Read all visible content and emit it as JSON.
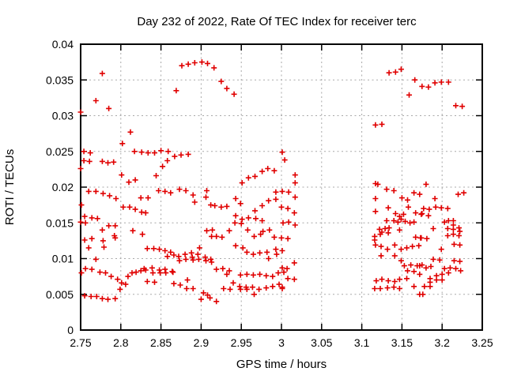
{
  "title": "Day 232 of 2022, Rate Of TEC Index for receiver terc",
  "chart_data": {
    "type": "scatter",
    "title": "Day 232 of 2022, Rate Of TEC Index for receiver terc",
    "xlabel": "GPS time / hours",
    "ylabel": "ROTI / TECUs",
    "xlim": [
      2.75,
      3.25
    ],
    "ylim": [
      0,
      0.04
    ],
    "grid": true,
    "legend": "none",
    "marker": "plus",
    "colors": {
      "marker": "#e00000",
      "grid": "#a8a8a8",
      "axis": "#000000",
      "background": "#ffffff",
      "text": "#000000"
    },
    "x_tick_values": [
      2.75,
      2.8,
      2.85,
      2.9,
      2.95,
      3,
      3.05,
      3.1,
      3.15,
      3.2,
      3.25
    ],
    "x_tick_labels": [
      "2.75",
      "2.8",
      "2.85",
      "2.9",
      "2.95",
      "3",
      "3.05",
      "3.1",
      "3.15",
      "3.2",
      "3.25"
    ],
    "y_tick_values": [
      0,
      0.005,
      0.01,
      0.015,
      0.02,
      0.025,
      0.03,
      0.035,
      0.04
    ],
    "y_tick_labels": [
      "0",
      "0.005",
      "0.01",
      "0.015",
      "0.02",
      "0.025",
      "0.03",
      "0.035",
      "0.04"
    ],
    "points": [
      [
        2.876,
        0.037
      ],
      [
        2.884,
        0.0372
      ],
      [
        2.892,
        0.0374
      ],
      [
        2.901,
        0.0375
      ],
      [
        2.908,
        0.0373
      ],
      [
        2.916,
        0.0367
      ],
      [
        2.925,
        0.0348
      ],
      [
        2.932,
        0.0338
      ],
      [
        2.941,
        0.033
      ],
      [
        2.777,
        0.0359
      ],
      [
        2.869,
        0.0335
      ],
      [
        2.769,
        0.0321
      ],
      [
        2.785,
        0.031
      ],
      [
        2.75,
        0.0305
      ],
      [
        2.812,
        0.0277
      ],
      [
        2.802,
        0.0261
      ],
      [
        2.754,
        0.025
      ],
      [
        2.762,
        0.0248
      ],
      [
        2.817,
        0.025
      ],
      [
        2.826,
        0.0249
      ],
      [
        2.834,
        0.0248
      ],
      [
        2.842,
        0.0248
      ],
      [
        2.85,
        0.0251
      ],
      [
        2.859,
        0.025
      ],
      [
        2.867,
        0.0243
      ],
      [
        2.875,
        0.0245
      ],
      [
        2.884,
        0.0246
      ],
      [
        2.754,
        0.0237
      ],
      [
        2.761,
        0.0236
      ],
      [
        2.777,
        0.0236
      ],
      [
        2.784,
        0.0234
      ],
      [
        2.791,
        0.0235
      ],
      [
        2.858,
        0.0237
      ],
      [
        2.852,
        0.0229
      ],
      [
        2.75,
        0.0226
      ],
      [
        3.001,
        0.0249
      ],
      [
        3.004,
        0.0238
      ],
      [
        2.801,
        0.0217
      ],
      [
        2.844,
        0.0216
      ],
      [
        2.81,
        0.0207
      ],
      [
        2.818,
        0.021
      ],
      [
        2.951,
        0.0206
      ],
      [
        2.959,
        0.0213
      ],
      [
        2.967,
        0.0215
      ],
      [
        2.976,
        0.0222
      ],
      [
        2.983,
        0.0226
      ],
      [
        2.991,
        0.0223
      ],
      [
        3.017,
        0.0217
      ],
      [
        3.017,
        0.0206
      ],
      [
        2.76,
        0.0194
      ],
      [
        2.769,
        0.0194
      ],
      [
        2.778,
        0.0191
      ],
      [
        2.786,
        0.0188
      ],
      [
        2.794,
        0.0184
      ],
      [
        2.825,
        0.0185
      ],
      [
        2.834,
        0.0185
      ],
      [
        2.847,
        0.0195
      ],
      [
        2.855,
        0.0194
      ],
      [
        2.862,
        0.0192
      ],
      [
        2.873,
        0.0197
      ],
      [
        2.881,
        0.0195
      ],
      [
        2.89,
        0.0189
      ],
      [
        2.892,
        0.0179
      ],
      [
        2.907,
        0.0195
      ],
      [
        2.906,
        0.0186
      ],
      [
        2.912,
        0.0175
      ],
      [
        2.751,
        0.0175
      ],
      [
        2.803,
        0.0172
      ],
      [
        2.811,
        0.0172
      ],
      [
        2.818,
        0.0169
      ],
      [
        2.826,
        0.0165
      ],
      [
        2.831,
        0.0164
      ],
      [
        2.993,
        0.0193
      ],
      [
        3.001,
        0.0194
      ],
      [
        2.943,
        0.0184
      ],
      [
        2.984,
        0.0181
      ],
      [
        2.993,
        0.0183
      ],
      [
        2.949,
        0.0177
      ],
      [
        2.917,
        0.0174
      ],
      [
        2.925,
        0.0172
      ],
      [
        2.932,
        0.0173
      ],
      [
        2.967,
        0.0167
      ],
      [
        2.976,
        0.0174
      ],
      [
        3.009,
        0.0193
      ],
      [
        3.017,
        0.0186
      ],
      [
        3.0,
        0.0172
      ],
      [
        3.008,
        0.017
      ],
      [
        3.016,
        0.0164
      ],
      [
        2.755,
        0.0159
      ],
      [
        2.764,
        0.0157
      ],
      [
        2.771,
        0.0156
      ],
      [
        2.75,
        0.0151
      ],
      [
        2.756,
        0.015
      ],
      [
        2.943,
        0.016
      ],
      [
        2.951,
        0.0155
      ],
      [
        2.959,
        0.0157
      ],
      [
        2.968,
        0.0156
      ],
      [
        2.976,
        0.0153
      ],
      [
        2.942,
        0.015
      ],
      [
        2.95,
        0.0149
      ],
      [
        3.002,
        0.015
      ],
      [
        3.009,
        0.0151
      ],
      [
        3.017,
        0.0147
      ],
      [
        2.777,
        0.014
      ],
      [
        2.785,
        0.0146
      ],
      [
        2.793,
        0.0146
      ],
      [
        2.792,
        0.0132
      ],
      [
        2.793,
        0.0129
      ],
      [
        2.815,
        0.0139
      ],
      [
        2.827,
        0.0134
      ],
      [
        2.907,
        0.0139
      ],
      [
        2.914,
        0.014
      ],
      [
        2.913,
        0.0131
      ],
      [
        2.935,
        0.0139
      ],
      [
        2.919,
        0.0131
      ],
      [
        2.926,
        0.013
      ],
      [
        2.958,
        0.014
      ],
      [
        2.966,
        0.0131
      ],
      [
        2.974,
        0.0134
      ],
      [
        2.977,
        0.0138
      ],
      [
        2.985,
        0.014
      ],
      [
        2.991,
        0.013
      ],
      [
        3.0,
        0.0129
      ],
      [
        3.008,
        0.0128
      ],
      [
        2.755,
        0.0126
      ],
      [
        2.764,
        0.0128
      ],
      [
        2.778,
        0.0125
      ],
      [
        2.76,
        0.0115
      ],
      [
        2.779,
        0.0116
      ],
      [
        2.833,
        0.0114
      ],
      [
        2.841,
        0.0114
      ],
      [
        2.848,
        0.0113
      ],
      [
        2.855,
        0.0111
      ],
      [
        2.862,
        0.0109
      ],
      [
        2.898,
        0.0115
      ],
      [
        2.943,
        0.0118
      ],
      [
        2.952,
        0.0115
      ],
      [
        2.957,
        0.0109
      ],
      [
        2.965,
        0.0106
      ],
      [
        2.973,
        0.0108
      ],
      [
        2.982,
        0.0109
      ],
      [
        2.993,
        0.0113
      ],
      [
        3.001,
        0.0111
      ],
      [
        2.994,
        0.0106
      ],
      [
        2.769,
        0.0099
      ],
      [
        2.858,
        0.0103
      ],
      [
        2.866,
        0.0105
      ],
      [
        2.872,
        0.0103
      ],
      [
        2.873,
        0.0097
      ],
      [
        2.88,
        0.0106
      ],
      [
        2.881,
        0.0099
      ],
      [
        2.888,
        0.0108
      ],
      [
        2.889,
        0.0102
      ],
      [
        2.89,
        0.0098
      ],
      [
        2.896,
        0.0106
      ],
      [
        2.897,
        0.0099
      ],
      [
        2.905,
        0.0102
      ],
      [
        2.906,
        0.0097
      ],
      [
        2.912,
        0.0099
      ],
      [
        2.913,
        0.0095
      ],
      [
        2.984,
        0.01
      ],
      [
        2.756,
        0.0086
      ],
      [
        2.764,
        0.0085
      ],
      [
        2.751,
        0.008
      ],
      [
        2.774,
        0.0081
      ],
      [
        2.781,
        0.008
      ],
      [
        2.788,
        0.0075
      ],
      [
        2.796,
        0.0071
      ],
      [
        2.809,
        0.0075
      ],
      [
        2.814,
        0.008
      ],
      [
        2.819,
        0.0081
      ],
      [
        2.825,
        0.0083
      ],
      [
        2.829,
        0.0086
      ],
      [
        2.831,
        0.0084
      ],
      [
        2.839,
        0.0087
      ],
      [
        2.84,
        0.008
      ],
      [
        2.848,
        0.0084
      ],
      [
        2.849,
        0.008
      ],
      [
        2.855,
        0.0085
      ],
      [
        2.856,
        0.008
      ],
      [
        2.864,
        0.0082
      ],
      [
        2.865,
        0.0081
      ],
      [
        2.919,
        0.0085
      ],
      [
        2.927,
        0.0086
      ],
      [
        2.935,
        0.0083
      ],
      [
        2.932,
        0.0078
      ],
      [
        2.949,
        0.0077
      ],
      [
        2.957,
        0.0078
      ],
      [
        2.965,
        0.0077
      ],
      [
        2.973,
        0.0078
      ],
      [
        2.981,
        0.0076
      ],
      [
        2.989,
        0.0075
      ],
      [
        2.996,
        0.008
      ],
      [
        3.003,
        0.0081
      ],
      [
        3.001,
        0.0087
      ],
      [
        3.007,
        0.0086
      ],
      [
        3.016,
        0.0094
      ],
      [
        2.833,
        0.0068
      ],
      [
        2.842,
        0.0067
      ],
      [
        2.866,
        0.0065
      ],
      [
        2.874,
        0.0063
      ],
      [
        2.883,
        0.007
      ],
      [
        2.801,
        0.0066
      ],
      [
        2.806,
        0.0064
      ],
      [
        2.799,
        0.0057
      ],
      [
        2.94,
        0.0066
      ],
      [
        2.948,
        0.0061
      ],
      [
        2.956,
        0.006
      ],
      [
        2.964,
        0.006
      ],
      [
        2.949,
        0.0057
      ],
      [
        2.957,
        0.0057
      ],
      [
        2.928,
        0.0058
      ],
      [
        2.936,
        0.0057
      ],
      [
        2.972,
        0.0057
      ],
      [
        2.981,
        0.0059
      ],
      [
        2.989,
        0.0061
      ],
      [
        2.997,
        0.0064
      ],
      [
        3.001,
        0.006
      ],
      [
        3.008,
        0.0072
      ],
      [
        3.016,
        0.0071
      ],
      [
        3.001,
        0.0058
      ],
      [
        2.882,
        0.0058
      ],
      [
        2.89,
        0.0058
      ],
      [
        2.755,
        0.0048
      ],
      [
        2.763,
        0.0047
      ],
      [
        2.77,
        0.0047
      ],
      [
        2.777,
        0.0044
      ],
      [
        2.784,
        0.0043
      ],
      [
        2.793,
        0.0044
      ],
      [
        2.903,
        0.0052
      ],
      [
        2.908,
        0.0049
      ],
      [
        2.9,
        0.0043
      ],
      [
        2.911,
        0.0045
      ],
      [
        2.966,
        0.005
      ],
      [
        2.919,
        0.004
      ],
      [
        3.134,
        0.036
      ],
      [
        3.142,
        0.0361
      ],
      [
        3.149,
        0.0365
      ],
      [
        3.166,
        0.035
      ],
      [
        3.175,
        0.0341
      ],
      [
        3.183,
        0.034
      ],
      [
        3.191,
        0.0346
      ],
      [
        3.199,
        0.0347
      ],
      [
        3.208,
        0.0347
      ],
      [
        3.159,
        0.0329
      ],
      [
        3.217,
        0.0314
      ],
      [
        3.225,
        0.0313
      ],
      [
        3.117,
        0.0287
      ],
      [
        3.125,
        0.0288
      ],
      [
        3.117,
        0.0205
      ],
      [
        3.12,
        0.0204
      ],
      [
        3.18,
        0.0204
      ],
      [
        3.131,
        0.0197
      ],
      [
        3.14,
        0.0195
      ],
      [
        3.165,
        0.0192
      ],
      [
        3.172,
        0.019
      ],
      [
        3.117,
        0.0184
      ],
      [
        3.15,
        0.0185
      ],
      [
        3.157,
        0.0182
      ],
      [
        3.22,
        0.019
      ],
      [
        3.227,
        0.0192
      ],
      [
        3.191,
        0.0184
      ],
      [
        3.133,
        0.0171
      ],
      [
        3.117,
        0.0166
      ],
      [
        3.158,
        0.0172
      ],
      [
        3.142,
        0.0163
      ],
      [
        3.147,
        0.0159
      ],
      [
        3.152,
        0.0162
      ],
      [
        3.167,
        0.0164
      ],
      [
        3.175,
        0.0163
      ],
      [
        3.177,
        0.017
      ],
      [
        3.184,
        0.0169
      ],
      [
        3.192,
        0.0172
      ],
      [
        3.199,
        0.0171
      ],
      [
        3.207,
        0.017
      ],
      [
        3.174,
        0.0162
      ],
      [
        3.183,
        0.016
      ],
      [
        3.131,
        0.0153
      ],
      [
        3.14,
        0.0153
      ],
      [
        3.145,
        0.0151
      ],
      [
        3.149,
        0.0155
      ],
      [
        3.154,
        0.0152
      ],
      [
        3.16,
        0.015
      ],
      [
        3.165,
        0.0151
      ],
      [
        3.203,
        0.0151
      ],
      [
        3.208,
        0.0153
      ],
      [
        3.214,
        0.0153
      ],
      [
        3.214,
        0.0147
      ],
      [
        3.122,
        0.0141
      ],
      [
        3.129,
        0.0142
      ],
      [
        3.134,
        0.0143
      ],
      [
        3.125,
        0.0137
      ],
      [
        3.133,
        0.0136
      ],
      [
        3.147,
        0.014
      ],
      [
        3.116,
        0.0131
      ],
      [
        3.123,
        0.0134
      ],
      [
        3.116,
        0.0126
      ],
      [
        3.167,
        0.013
      ],
      [
        3.173,
        0.0129
      ],
      [
        3.189,
        0.0142
      ],
      [
        3.207,
        0.0142
      ],
      [
        3.214,
        0.0141
      ],
      [
        3.221,
        0.0143
      ],
      [
        3.222,
        0.0138
      ],
      [
        3.221,
        0.0132
      ],
      [
        3.214,
        0.0134
      ],
      [
        3.207,
        0.0132
      ],
      [
        3.174,
        0.0129
      ],
      [
        3.181,
        0.0128
      ],
      [
        3.117,
        0.0119
      ],
      [
        3.124,
        0.0117
      ],
      [
        3.132,
        0.0113
      ],
      [
        3.141,
        0.0119
      ],
      [
        3.149,
        0.0113
      ],
      [
        3.156,
        0.0115
      ],
      [
        3.163,
        0.0117
      ],
      [
        3.171,
        0.0118
      ],
      [
        3.215,
        0.012
      ],
      [
        3.222,
        0.0119
      ],
      [
        3.199,
        0.0113
      ],
      [
        3.124,
        0.0104
      ],
      [
        3.141,
        0.0104
      ],
      [
        3.149,
        0.0097
      ],
      [
        3.189,
        0.0099
      ],
      [
        3.197,
        0.0098
      ],
      [
        3.215,
        0.0097
      ],
      [
        3.222,
        0.0096
      ],
      [
        3.153,
        0.009
      ],
      [
        3.161,
        0.0091
      ],
      [
        3.169,
        0.009
      ],
      [
        3.175,
        0.0091
      ],
      [
        3.157,
        0.0083
      ],
      [
        3.165,
        0.0082
      ],
      [
        3.172,
        0.009
      ],
      [
        3.18,
        0.0087
      ],
      [
        3.186,
        0.0089
      ],
      [
        3.203,
        0.0086
      ],
      [
        3.21,
        0.0087
      ],
      [
        3.217,
        0.0086
      ],
      [
        3.223,
        0.0083
      ],
      [
        3.172,
        0.0078
      ],
      [
        3.193,
        0.0076
      ],
      [
        3.2,
        0.0078
      ],
      [
        3.208,
        0.008
      ],
      [
        3.147,
        0.0071
      ],
      [
        3.156,
        0.0072
      ],
      [
        3.118,
        0.0069
      ],
      [
        3.125,
        0.0071
      ],
      [
        3.133,
        0.0069
      ],
      [
        3.141,
        0.0068
      ],
      [
        3.185,
        0.0072
      ],
      [
        3.193,
        0.007
      ],
      [
        3.2,
        0.007
      ],
      [
        3.185,
        0.0067
      ],
      [
        3.178,
        0.0061
      ],
      [
        3.185,
        0.0061
      ],
      [
        3.165,
        0.0061
      ],
      [
        3.116,
        0.0058
      ],
      [
        3.123,
        0.0058
      ],
      [
        3.132,
        0.0059
      ],
      [
        3.14,
        0.006
      ],
      [
        3.147,
        0.0058
      ],
      [
        3.172,
        0.005
      ],
      [
        3.176,
        0.005
      ]
    ]
  }
}
